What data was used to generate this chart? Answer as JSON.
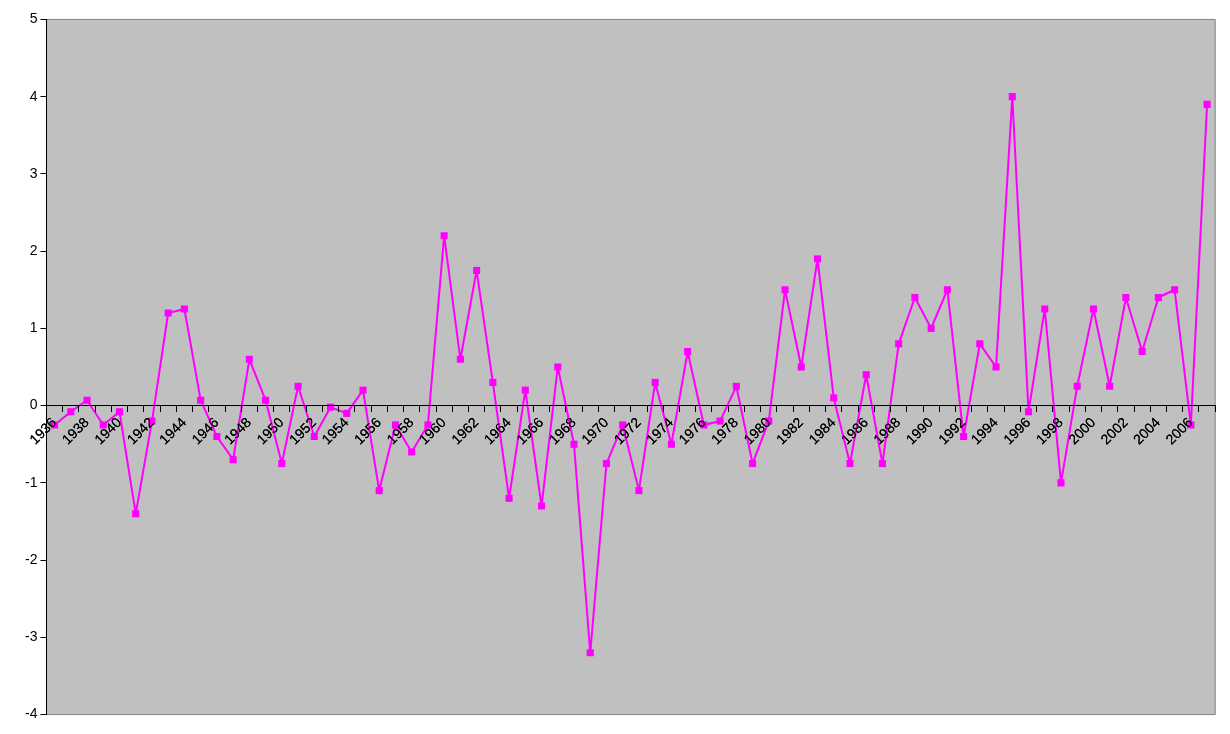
{
  "chart_data": {
    "type": "line",
    "categories": [
      "1936",
      null,
      "1938",
      null,
      "1940",
      null,
      "1942",
      null,
      "1944",
      null,
      "1946",
      null,
      "1948",
      null,
      "1950",
      null,
      "1952",
      null,
      "1954",
      null,
      "1956",
      null,
      "1958",
      null,
      "1960",
      null,
      "1962",
      null,
      "1964",
      null,
      "1966",
      null,
      "1968",
      null,
      "1970",
      null,
      "1972",
      null,
      "1974",
      null,
      "1976",
      null,
      "1978",
      null,
      "1980",
      null,
      "1982",
      null,
      "1984",
      null,
      "1986",
      null,
      "1988",
      null,
      "1990",
      null,
      "1992",
      null,
      "1994",
      null,
      "1996",
      null,
      "1998",
      null,
      "2000",
      null,
      "2002",
      null,
      "2004",
      null,
      "2006",
      null
    ],
    "series": [
      {
        "color": "#ff00ff",
        "values": [
          -0.25,
          -0.08,
          0.07,
          -0.25,
          -0.08,
          -1.4,
          -0.2,
          1.2,
          1.25,
          0.07,
          -0.4,
          -0.7,
          0.6,
          0.07,
          -0.75,
          0.25,
          -0.4,
          -0.02,
          -0.1,
          0.2,
          -1.1,
          -0.25,
          -0.6,
          -0.25,
          2.2,
          0.6,
          1.75,
          0.3,
          -1.2,
          0.2,
          -1.3,
          0.5,
          -0.5,
          -3.2,
          -0.75,
          -0.25,
          -1.1,
          0.3,
          -0.5,
          0.7,
          -0.25,
          -0.2,
          0.25,
          -0.75,
          -0.2,
          1.5,
          0.5,
          1.9,
          0.1,
          -0.75,
          0.4,
          -0.75,
          0.8,
          1.4,
          1.0,
          1.5,
          -0.4,
          0.8,
          0.5,
          4.0,
          -0.08,
          1.25,
          -1.0,
          0.25,
          1.25,
          0.25,
          1.4,
          0.7,
          1.4,
          1.5,
          -0.25,
          3.9
        ]
      }
    ],
    "ylim": [
      -4,
      5
    ],
    "yticks": [
      -4,
      -3,
      -2,
      -1,
      0,
      1,
      2,
      3,
      4,
      5
    ],
    "grid": false,
    "legend": false,
    "marker": "square",
    "line_style": "solid"
  }
}
